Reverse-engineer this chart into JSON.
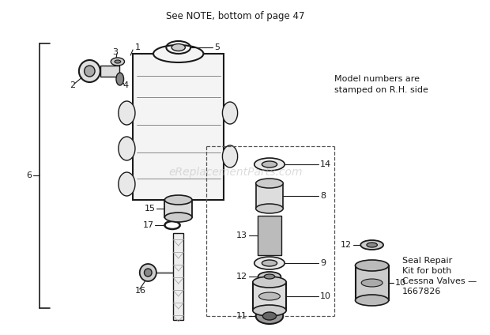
{
  "bg_color": "#ffffff",
  "fg_color": "#1a1a1a",
  "title": "See NOTE, bottom of page 47",
  "watermark": "eReplacementParts.com",
  "note1": "Model numbers are",
  "note2": "stamped on R.H. side",
  "seal_text": [
    "Seal Repair",
    "Kit for both",
    "Cessna Valves —",
    "1667826"
  ]
}
